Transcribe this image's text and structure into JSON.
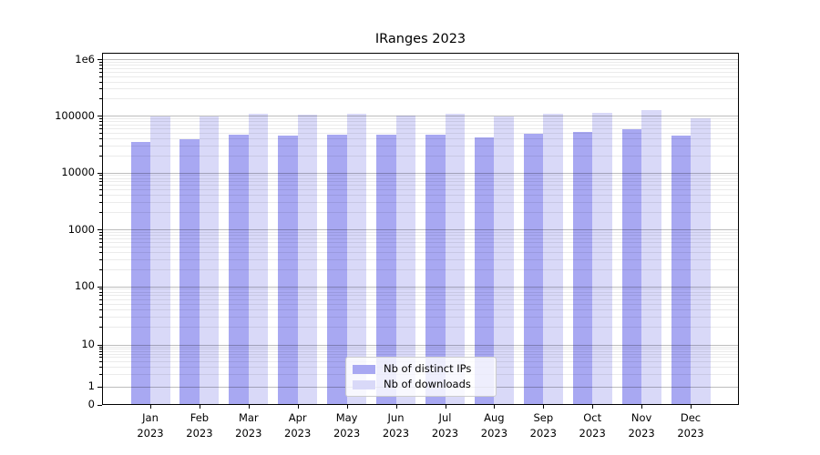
{
  "chart_data": {
    "type": "bar",
    "title": "IRanges 2023",
    "year_label": "2023",
    "categories": [
      "Jan",
      "Feb",
      "Mar",
      "Apr",
      "May",
      "Jun",
      "Jul",
      "Aug",
      "Sep",
      "Oct",
      "Nov",
      "Dec"
    ],
    "series": [
      {
        "name": "Nb of distinct IPs",
        "color": "#a8a8f2",
        "values": [
          35000,
          38500,
          46000,
          44500,
          46000,
          45500,
          46500,
          42000,
          48500,
          51000,
          58000,
          44000
        ]
      },
      {
        "name": "Nb of downloads",
        "color": "#d9d9f8",
        "values": [
          95000,
          97000,
          109000,
          105000,
          107000,
          100000,
          106000,
          98000,
          107000,
          112000,
          124000,
          89000
        ]
      }
    ],
    "yscale": "symlog",
    "ylim": [
      0,
      1350000
    ],
    "yticks": [
      {
        "label": "1e6",
        "value": 1000000
      },
      {
        "label": "100000",
        "value": 100000
      },
      {
        "label": "10000",
        "value": 10000
      },
      {
        "label": "1000",
        "value": 1000
      },
      {
        "label": "100",
        "value": 100
      },
      {
        "label": "10",
        "value": 10
      },
      {
        "label": "1",
        "value": 1
      },
      {
        "label": "0",
        "value": 0
      }
    ],
    "grid": "horizontal, major and minor (log decades), drawn over bars",
    "legend_position": "lower center"
  }
}
